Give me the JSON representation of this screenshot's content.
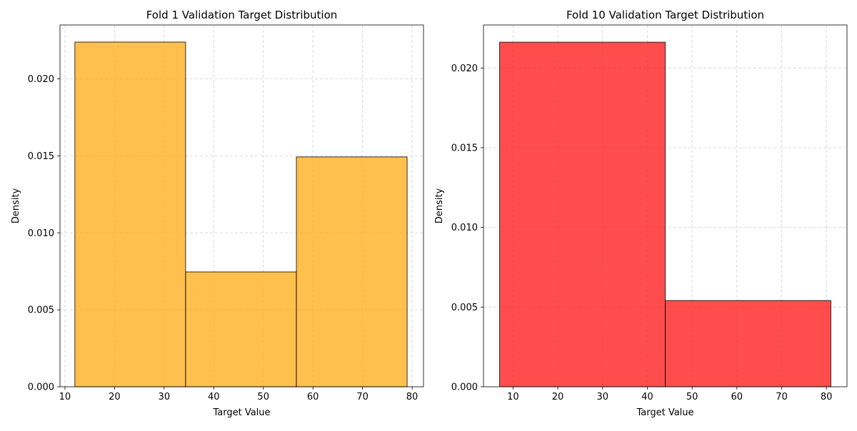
{
  "chart_data": [
    {
      "type": "bar",
      "title": "Fold 1 Validation Target Distribution",
      "xlabel": "Target Value",
      "ylabel": "Density",
      "color": "#FFB020",
      "bins": [
        {
          "x0": 12.0,
          "x1": 34.33,
          "value": 0.02239
        },
        {
          "x0": 34.33,
          "x1": 56.67,
          "value": 0.00746
        },
        {
          "x0": 56.67,
          "x1": 79.0,
          "value": 0.01493
        }
      ],
      "xlim": [
        9,
        82.3
      ],
      "ylim": [
        0,
        0.0235
      ],
      "xticks": [
        10,
        20,
        30,
        40,
        50,
        60,
        70,
        80
      ],
      "yticks": [
        0.0,
        0.005,
        0.01,
        0.015,
        0.02
      ],
      "xtick_labels": [
        "10",
        "20",
        "30",
        "40",
        "50",
        "60",
        "70",
        "80"
      ],
      "ytick_labels": [
        "0.000",
        "0.005",
        "0.010",
        "0.015",
        "0.020"
      ],
      "grid": true
    },
    {
      "type": "bar",
      "title": "Fold 10 Validation Target Distribution",
      "xlabel": "Target Value",
      "ylabel": "Density",
      "color": "#FF2020",
      "bins": [
        {
          "x0": 7.0,
          "x1": 44.0,
          "value": 0.02162
        },
        {
          "x0": 44.0,
          "x1": 81.0,
          "value": 0.00541
        }
      ],
      "xlim": [
        3.4,
        84.6
      ],
      "ylim": [
        0,
        0.0227
      ],
      "xticks": [
        10,
        20,
        30,
        40,
        50,
        60,
        70,
        80
      ],
      "yticks": [
        0.0,
        0.005,
        0.01,
        0.015,
        0.02
      ],
      "xtick_labels": [
        "10",
        "20",
        "30",
        "40",
        "50",
        "60",
        "70",
        "80"
      ],
      "ytick_labels": [
        "0.000",
        "0.005",
        "0.010",
        "0.015",
        "0.020"
      ],
      "grid": true
    }
  ]
}
